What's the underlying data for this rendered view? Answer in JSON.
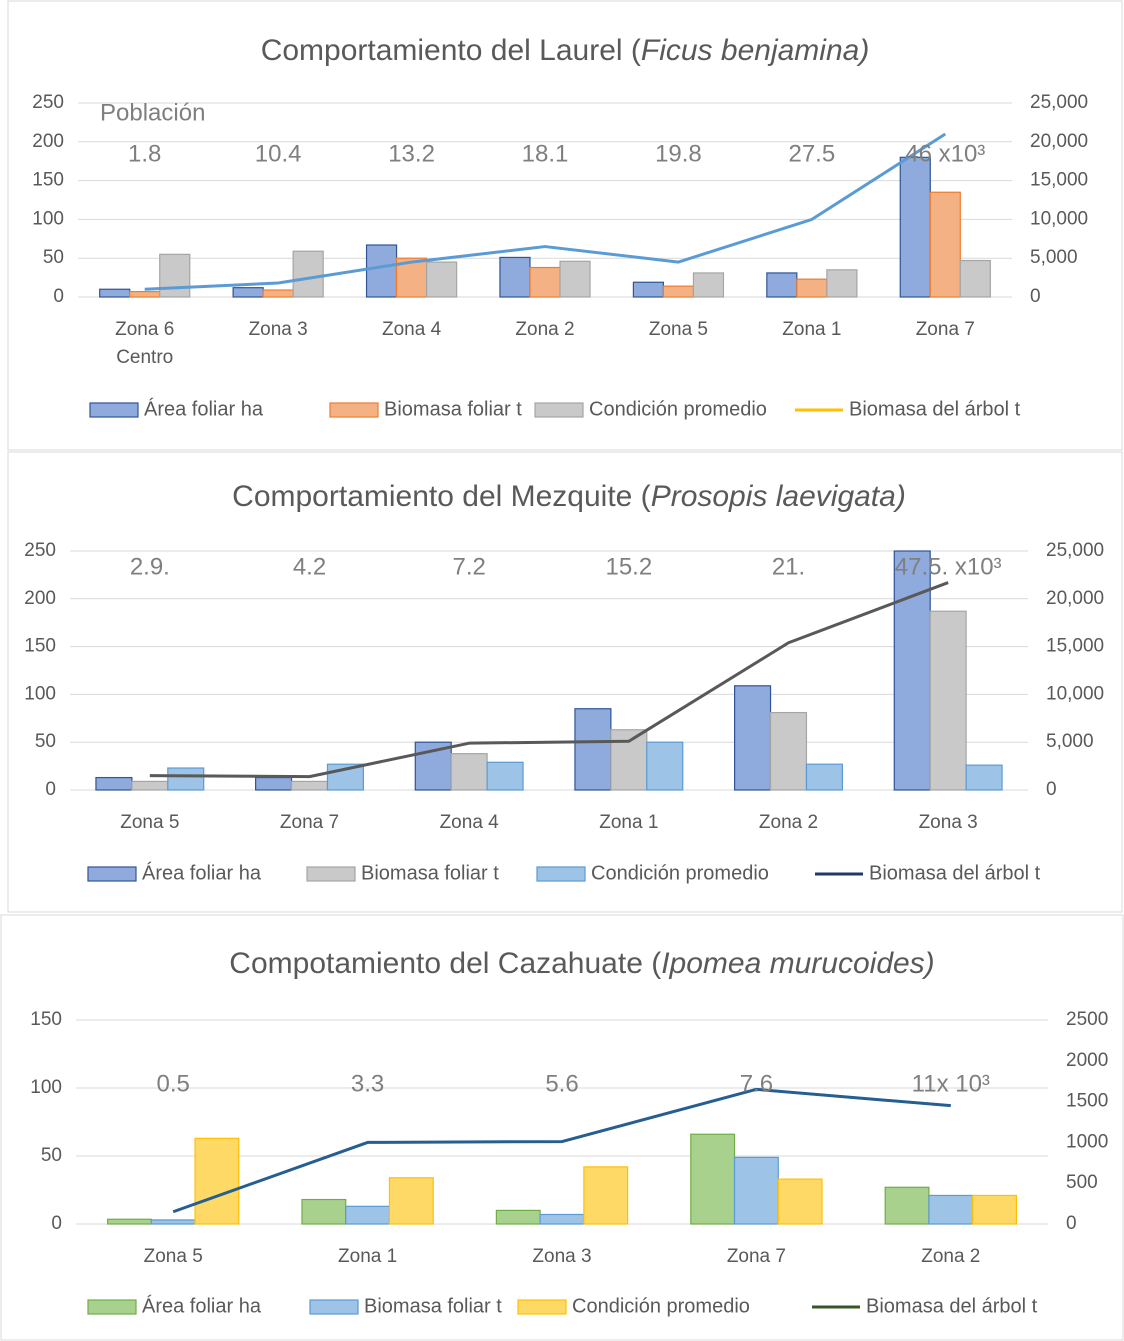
{
  "chart_data": [
    {
      "type": "bar",
      "title_parts": [
        "Comportamiento del Laurel (",
        "Ficus benjamina)"
      ],
      "annotation_label": "Población",
      "annotations": [
        "1.8",
        "10.4",
        "13.2",
        "18.1",
        "19.8",
        "27.5",
        "46 x10³"
      ],
      "categories": [
        "Zona 6 Centro",
        "Zona 3",
        "Zona 4",
        "Zona 2",
        "Zona 5",
        "Zona 1",
        "Zona 7"
      ],
      "series": [
        {
          "name": "Área foliar ha",
          "type": "bar",
          "color": "#8faadc",
          "edge_color": "#2f5597",
          "values": [
            10,
            12,
            67,
            51,
            19,
            31,
            180
          ]
        },
        {
          "name": "Biomasa foliar t",
          "type": "bar",
          "color": "#f4b183",
          "edge_color": "#ed7d31",
          "values": [
            7,
            9,
            50,
            38,
            14,
            23,
            135
          ]
        },
        {
          "name": "Condición promedio",
          "type": "bar",
          "color": "#c9c9c9",
          "edge_color": "#a5a5a5",
          "values": [
            55,
            59,
            45,
            46,
            31,
            35,
            47
          ]
        },
        {
          "name": "Biomasa del árbol t",
          "type": "line",
          "axis": "y2",
          "color": "#5b9bd5",
          "legend_color": "#ffc000",
          "values": [
            1000,
            1800,
            4500,
            6500,
            4500,
            10000,
            21000
          ]
        }
      ],
      "ylim": [
        0,
        250
      ],
      "yticks": [
        0,
        50,
        100,
        150,
        200,
        250
      ],
      "y2lim": [
        0,
        25000
      ],
      "y2ticks": [
        0,
        {
          "value": 5000,
          "label": "5,000"
        },
        {
          "value": 10000,
          "label": "10,000"
        },
        {
          "value": 15000,
          "label": "15,000"
        },
        {
          "value": 20000,
          "label": "20,000"
        },
        {
          "value": 25000,
          "label": "25,000"
        }
      ],
      "grid": true
    },
    {
      "type": "bar",
      "title_parts": [
        "Comportamiento del Mezquite (",
        "Prosopis laevigata)"
      ],
      "annotations": [
        "2.9.",
        "4.2",
        "7.2",
        "15.2",
        "21.",
        "47.5. x10³"
      ],
      "categories": [
        "Zona 5",
        "Zona 7",
        "Zona 4",
        "Zona 1",
        "Zona 2",
        "Zona 3"
      ],
      "series": [
        {
          "name": "Área foliar ha",
          "type": "bar",
          "color": "#8faadc",
          "edge_color": "#2f5597",
          "values": [
            13,
            13,
            50,
            85,
            109,
            250
          ]
        },
        {
          "name": "Biomasa foliar t",
          "type": "bar",
          "color": "#c9c9c9",
          "edge_color": "#a5a5a5",
          "values": [
            9,
            9,
            38,
            63,
            81,
            187
          ]
        },
        {
          "name": "Condición promedio",
          "type": "bar",
          "color": "#9dc3e6",
          "edge_color": "#5b9bd5",
          "values": [
            23,
            27,
            29,
            50,
            27,
            26
          ]
        },
        {
          "name": "Biomasa del árbol t",
          "type": "line",
          "axis": "y2",
          "color": "#595959",
          "legend_color": "#203864",
          "values": [
            1500,
            1400,
            4900,
            5100,
            15400,
            21700
          ]
        }
      ],
      "ylim": [
        0,
        250
      ],
      "yticks": [
        0,
        50,
        100,
        150,
        200,
        250
      ],
      "y2lim": [
        0,
        25000
      ],
      "y2ticks": [
        0,
        {
          "value": 5000,
          "label": "5,000"
        },
        {
          "value": 10000,
          "label": "10,000"
        },
        {
          "value": 15000,
          "label": "15,000"
        },
        {
          "value": 20000,
          "label": "20,000"
        },
        {
          "value": 25000,
          "label": "25,000"
        }
      ],
      "grid": true
    },
    {
      "type": "bar",
      "title_parts": [
        "Compotamiento del Cazahuate  (",
        "Ipomea murucoides)"
      ],
      "annotations": [
        "0.5",
        "3.3",
        "5.6",
        "7.6",
        "11x 10³"
      ],
      "categories": [
        "Zona 5",
        "Zona 1",
        "Zona 3",
        "Zona 7",
        "Zona 2"
      ],
      "series": [
        {
          "name": "Área foliar ha",
          "type": "bar",
          "color": "#a9d18e",
          "edge_color": "#70ad47",
          "values": [
            3.5,
            18,
            10,
            66,
            27
          ]
        },
        {
          "name": "Biomasa foliar t",
          "type": "bar",
          "color": "#9dc3e6",
          "edge_color": "#5b9bd5",
          "values": [
            3,
            13,
            7,
            49,
            21
          ]
        },
        {
          "name": "Condición promedio",
          "type": "bar",
          "color": "#ffd966",
          "edge_color": "#ffc000",
          "values": [
            63,
            34,
            42,
            33,
            21
          ]
        },
        {
          "name": "Biomasa del árbol t",
          "type": "line",
          "axis": "y2",
          "color": "#255e91",
          "legend_color": "#375623",
          "values": [
            150,
            1000,
            1010,
            1650,
            1450
          ]
        }
      ],
      "ylim": [
        0,
        150
      ],
      "yticks": [
        0,
        50,
        100,
        150
      ],
      "y2lim": [
        0,
        2500
      ],
      "y2ticks": [
        0,
        500,
        1000,
        1500,
        2000,
        2500
      ],
      "grid": true
    }
  ]
}
